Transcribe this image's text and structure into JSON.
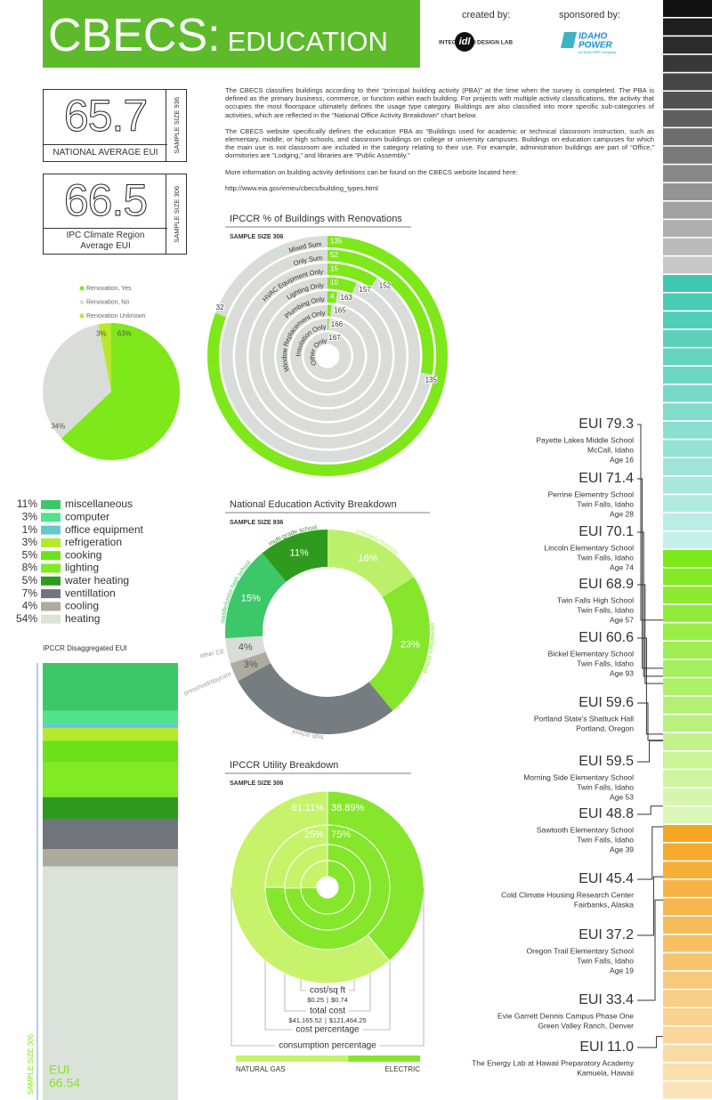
{
  "header": {
    "title": "CBECS:",
    "subtitle": "EDUCATION",
    "created_by": "created by:",
    "sponsored_by": "sponsored by:",
    "creator_logo": {
      "left": "INTEGRATED",
      "mark": "idl",
      "right": "DESIGN LAB"
    },
    "sponsor_logo": {
      "line1": "IDAHO",
      "line2": "POWER",
      "tagline": "An IDACORP Company"
    }
  },
  "stats": [
    {
      "value": 65.7,
      "label": "NATIONAL AVERAGE EUI",
      "sample": "SAMPLE SIZE 936"
    },
    {
      "value": 66.5,
      "label": "IPC Climate Region Average EUI",
      "sample": "SAMPLE SIZE 306"
    }
  ],
  "description": {
    "paragraphs": [
      "The CBECS classifies buildings according to their “principal building activity (PBA)” at the time when the survey is completed.  The PBA is defined as the primary business, commerce, or function within each building.  For projects with multiple activity classifications, the activity that occupies the most floorspace ultimately defines the usage type category. Buildings are also classified into more specific sub-categories of activities, which are reflected in the “National Office Activity Breakdown” chart below.",
      "The CBECS website specifically defines the education PBA as “Buildings used for academic or technical classroom instruction, such as elementary, middle, or high schools, and classroom buildings on college or university campuses. Buildings on education campuses for which the main use is not classroom are included in the category relating to their use. For example, administration buildings are part of “Office,” dormitories are “Lodging,” and libraries are “Public Assembly.”",
      "More information on building activity definitions can be found on the CBECS website located here:"
    ],
    "link": "http://www.eia.gov/emeu/cbecs/building_types.html"
  },
  "chart_data": [
    {
      "type": "radial_bar",
      "title": "IPCCR % of Buildings with Renovations",
      "subtitle": "SAMPLE SIZE 306",
      "categories": [
        "Mixed Sum",
        "Only Sum",
        "HVAC Equipment Only",
        "Lighting Only",
        "Plumbing Only",
        "Window Replacement Only",
        "Insulation Only",
        "Other Only"
      ],
      "series": [
        {
          "color": "#7fe81a",
          "values": [
            135,
            52,
            15,
            10,
            4,
            2,
            1,
            0
          ],
          "value_labels": [
            "135",
            "52",
            "15",
            "10",
            "4",
            null,
            null,
            null
          ]
        },
        {
          "color": "#d9ddd9",
          "values": [
            32,
            135,
            152,
            157,
            163,
            165,
            166,
            167
          ]
        }
      ]
    },
    {
      "type": "pie",
      "categories": [
        "Renovation, Yes",
        "Renovation, No",
        "Renovation Unknown"
      ],
      "values": [
        63,
        34,
        3
      ],
      "value_labels": [
        "63%",
        "34%",
        "3%"
      ],
      "colors": [
        "#7fe81a",
        "#d9ddd9",
        "#b8e82a"
      ],
      "legend": "top"
    },
    {
      "type": "stacked_bar",
      "title": "IPCCR Disaggregated EUI",
      "subtitle": "SAMPLE SIZE 306",
      "total_label": "EUI",
      "total": 66.54,
      "series": [
        {
          "name": "miscellaneous",
          "color": "#3cc768",
          "values": [
            11
          ],
          "value_labels": [
            "11%"
          ]
        },
        {
          "name": "computer",
          "color": "#4fe38c",
          "values": [
            3
          ],
          "value_labels": [
            "3%"
          ]
        },
        {
          "name": "office equipment",
          "color": "#63c9c9",
          "values": [
            1
          ],
          "value_labels": [
            "1%"
          ]
        },
        {
          "name": "refrigeration",
          "color": "#b5ea2c",
          "values": [
            3
          ],
          "value_labels": [
            "3%"
          ]
        },
        {
          "name": "cooking",
          "color": "#6be21b",
          "values": [
            5
          ],
          "value_labels": [
            "5%"
          ]
        },
        {
          "name": "lighting",
          "color": "#80ea22",
          "values": [
            8
          ],
          "value_labels": [
            "8%"
          ]
        },
        {
          "name": "water heating",
          "color": "#2f9b1e",
          "values": [
            5
          ],
          "value_labels": [
            "5%"
          ]
        },
        {
          "name": "ventillation",
          "color": "#6f7579",
          "values": [
            7
          ],
          "value_labels": [
            "7%"
          ]
        },
        {
          "name": "cooling",
          "color": "#adab9c",
          "values": [
            4
          ],
          "value_labels": [
            "4%"
          ]
        },
        {
          "name": "heating",
          "color": "#dbe2da",
          "values": [
            54
          ],
          "value_labels": [
            "54%"
          ]
        }
      ]
    },
    {
      "type": "donut",
      "title": "National Education Activity Breakdown",
      "subtitle": "SAMPLE SIZE 936",
      "categories": [
        "college/university",
        "elementary school",
        "high school",
        "preschool/daycare",
        "other CE",
        "middle/junior high school",
        "multi-grade school"
      ],
      "values": [
        16,
        23,
        28,
        3,
        4,
        15,
        11
      ],
      "value_labels": [
        "16%",
        "23%",
        null,
        "3%",
        "4%",
        "15%",
        "11%"
      ],
      "colors": [
        "#bdf06a",
        "#86e62c",
        "#767d80",
        "#aeac9f",
        "#d9ddd9",
        "#3cc768",
        "#2f9b1e"
      ]
    },
    {
      "type": "nested_ring",
      "title": "IPCCR Utility Breakdown",
      "subtitle": "SAMPLE SIZE 306",
      "series": [
        {
          "name": "NATURAL GAS",
          "color": "#c6f36a"
        },
        {
          "name": "ELECTRIC",
          "color": "#86e62c"
        }
      ],
      "rings": [
        {
          "name": "consumption percentage",
          "values": [
            61.11,
            38.89
          ],
          "value_labels": [
            "61.11%",
            "38.89%"
          ]
        },
        {
          "name": "cost percentage",
          "values": [
            25,
            75
          ],
          "value_labels": [
            "25%",
            "75%"
          ]
        },
        {
          "name": "total cost",
          "values": [
            41165.52,
            121464.25
          ],
          "value_labels": [
            "$41,165.52",
            "$121,464.25"
          ]
        },
        {
          "name": "cost/sq ft",
          "values": [
            0.25,
            0.74
          ],
          "value_labels": [
            "$0.25",
            "$0.74"
          ]
        }
      ],
      "separator": "|"
    }
  ],
  "buildings": {
    "prefix": "EUI",
    "items": [
      {
        "eui": 79.3,
        "name": "Payette Lakes Middle School",
        "location": "McCall, Idaho",
        "age": "Age 16"
      },
      {
        "eui": 71.4,
        "name": "Perrine Elementry School",
        "location": "Twin Falls, Idaho",
        "age": "Age 28"
      },
      {
        "eui": 70.1,
        "name": "Lincoln Elementary School",
        "location": "Twin Falls, Idaho",
        "age": "Age 74"
      },
      {
        "eui": 68.9,
        "name": "Twin Falls High School",
        "location": "Twin Falls, Idaho",
        "age": "Age 57"
      },
      {
        "eui": 60.6,
        "name": "Bickel Elementary School",
        "location": "Twin Falls, Idaho",
        "age": "Age 93"
      },
      {
        "eui": 59.6,
        "name": "Portland State's Shattuck Hall",
        "location": "Portland, Oregon"
      },
      {
        "eui": 59.5,
        "name": "Morning Side Elementary School",
        "location": "Twin Falls, Idaho",
        "age": "Age 53"
      },
      {
        "eui": 48.8,
        "name": "Sawtooth Elementary School",
        "location": "Twin Falls, Idaho",
        "age": "Age 39"
      },
      {
        "eui": 45.4,
        "name": "Cold Climate Housing Research Center",
        "location": "Fairbanks, Alaska"
      },
      {
        "eui": 37.2,
        "name": "Oregon Trail Elementary School",
        "location": "Twin Falls, Idaho",
        "age": "Age 19"
      },
      {
        "eui": 33.4,
        "name": "Evie Garrett Dennis Campus Phase One",
        "location": "Green Valley Ranch, Denver"
      },
      {
        "eui": 11.0,
        "eui_label": "11.0",
        "name": "The Energy Lab at Hawaii Preparatory Academy",
        "location": "Kamuela, Hawaii"
      }
    ]
  }
}
